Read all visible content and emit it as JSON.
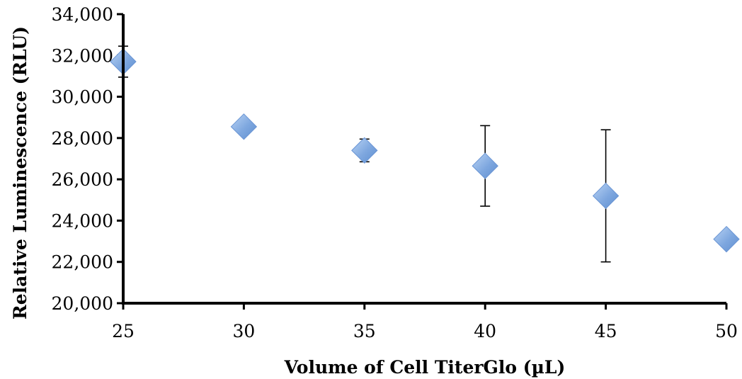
{
  "chart_data": {
    "type": "scatter",
    "title": "",
    "xlabel": "Volume of Cell TiterGlo (µL)",
    "ylabel": "Relative Luminescence (RLU)",
    "xlim": [
      25,
      50
    ],
    "ylim": [
      20000,
      34000
    ],
    "x_ticks": [
      "25",
      "30",
      "35",
      "40",
      "45",
      "50"
    ],
    "y_ticks": [
      "20,000",
      "22,000",
      "24,000",
      "26,000",
      "28,000",
      "30,000",
      "32,000",
      "34,000"
    ],
    "legend": "none",
    "grid": false,
    "marker": "diamond",
    "marker_color": "#7ea7df",
    "points": [
      {
        "x": 25,
        "y": 31700,
        "err": 750
      },
      {
        "x": 30,
        "y": 28550,
        "err": 0
      },
      {
        "x": 35,
        "y": 27400,
        "err": 550
      },
      {
        "x": 40,
        "y": 26650,
        "err": 1950
      },
      {
        "x": 45,
        "y": 25200,
        "err": 3200
      },
      {
        "x": 50,
        "y": 23100,
        "err": 0
      }
    ]
  }
}
